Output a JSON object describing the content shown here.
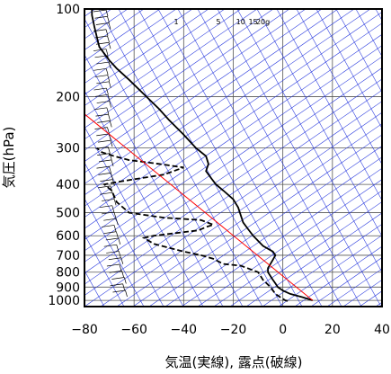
{
  "chart_data": {
    "type": "line",
    "title": "",
    "xlabel": "気温(実線), 露点(破線)",
    "ylabel": "気圧(hPa)",
    "x_scale": "linear",
    "y_scale": "log",
    "xlim": [
      -80,
      40
    ],
    "ylim": [
      1050,
      100
    ],
    "x_ticks": [
      "−80",
      "−60",
      "−40",
      "−20",
      "0",
      "20",
      "40"
    ],
    "x_tick_values": [
      -80,
      -60,
      -40,
      -20,
      0,
      20,
      40
    ],
    "y_ticks": [
      "100",
      "200",
      "300",
      "400",
      "500",
      "600",
      "700",
      "800",
      "900",
      "1000"
    ],
    "y_tick_values": [
      100,
      200,
      300,
      400,
      500,
      600,
      700,
      800,
      900,
      1000
    ],
    "mixing_ratio_labels": [
      "1",
      "5",
      "10",
      "15",
      "20g"
    ],
    "mixing_ratio_label_x": [
      -43,
      -26,
      -17,
      -12,
      -8
    ],
    "grid": true,
    "series": [
      {
        "role": "temperature",
        "style": "solid",
        "color": "#000000",
        "points": [
          [
            12,
            1000
          ],
          [
            8,
            975
          ],
          [
            3,
            950
          ],
          [
            0,
            925
          ],
          [
            -2,
            900
          ],
          [
            -3,
            875
          ],
          [
            -4,
            850
          ],
          [
            -5,
            825
          ],
          [
            -6,
            800
          ],
          [
            -6,
            775
          ],
          [
            -5,
            750
          ],
          [
            -4,
            725
          ],
          [
            -3,
            700
          ],
          [
            -4,
            680
          ],
          [
            -8,
            650
          ],
          [
            -12,
            600
          ],
          [
            -14,
            570
          ],
          [
            -16,
            540
          ],
          [
            -17,
            510
          ],
          [
            -18,
            480
          ],
          [
            -20,
            450
          ],
          [
            -24,
            420
          ],
          [
            -27,
            400
          ],
          [
            -29,
            380
          ],
          [
            -31,
            360
          ],
          [
            -30,
            340
          ],
          [
            -31,
            320
          ],
          [
            -35,
            300
          ],
          [
            -40,
            270
          ],
          [
            -46,
            240
          ],
          [
            -50,
            220
          ],
          [
            -55,
            200
          ],
          [
            -62,
            175
          ],
          [
            -67,
            160
          ],
          [
            -70,
            150
          ],
          [
            -74,
            135
          ],
          [
            -75,
            125
          ],
          [
            -76,
            115
          ],
          [
            -77,
            105
          ],
          [
            -77,
            100
          ]
        ]
      },
      {
        "role": "dewpoint",
        "style": "dashed",
        "color": "#000000",
        "points": [
          [
            2,
            1005
          ],
          [
            1,
            1000
          ],
          [
            -1,
            975
          ],
          [
            -3,
            950
          ],
          [
            -5,
            900
          ],
          [
            -8,
            850
          ],
          [
            -10,
            800
          ],
          [
            -17,
            760
          ],
          [
            -24,
            750
          ],
          [
            -28,
            720
          ],
          [
            -33,
            700
          ],
          [
            -40,
            680
          ],
          [
            -52,
            640
          ],
          [
            -56,
            610
          ],
          [
            -52,
            600
          ],
          [
            -34,
            575
          ],
          [
            -31,
            560
          ],
          [
            -28,
            550
          ],
          [
            -33,
            530
          ],
          [
            -48,
            520
          ],
          [
            -62,
            500
          ],
          [
            -67,
            460
          ],
          [
            -69,
            420
          ],
          [
            -72,
            400
          ],
          [
            -65,
            390
          ],
          [
            -48,
            370
          ],
          [
            -40,
            350
          ],
          [
            -50,
            340
          ],
          [
            -62,
            330
          ],
          [
            -68,
            320
          ],
          [
            -73,
            310
          ],
          [
            -75,
            300
          ]
        ]
      },
      {
        "role": "reference_line",
        "style": "solid",
        "color": "#ff0000",
        "points": [
          [
            12,
            1000
          ],
          [
            -82,
            222
          ]
        ]
      }
    ],
    "wind_barbs": true
  }
}
